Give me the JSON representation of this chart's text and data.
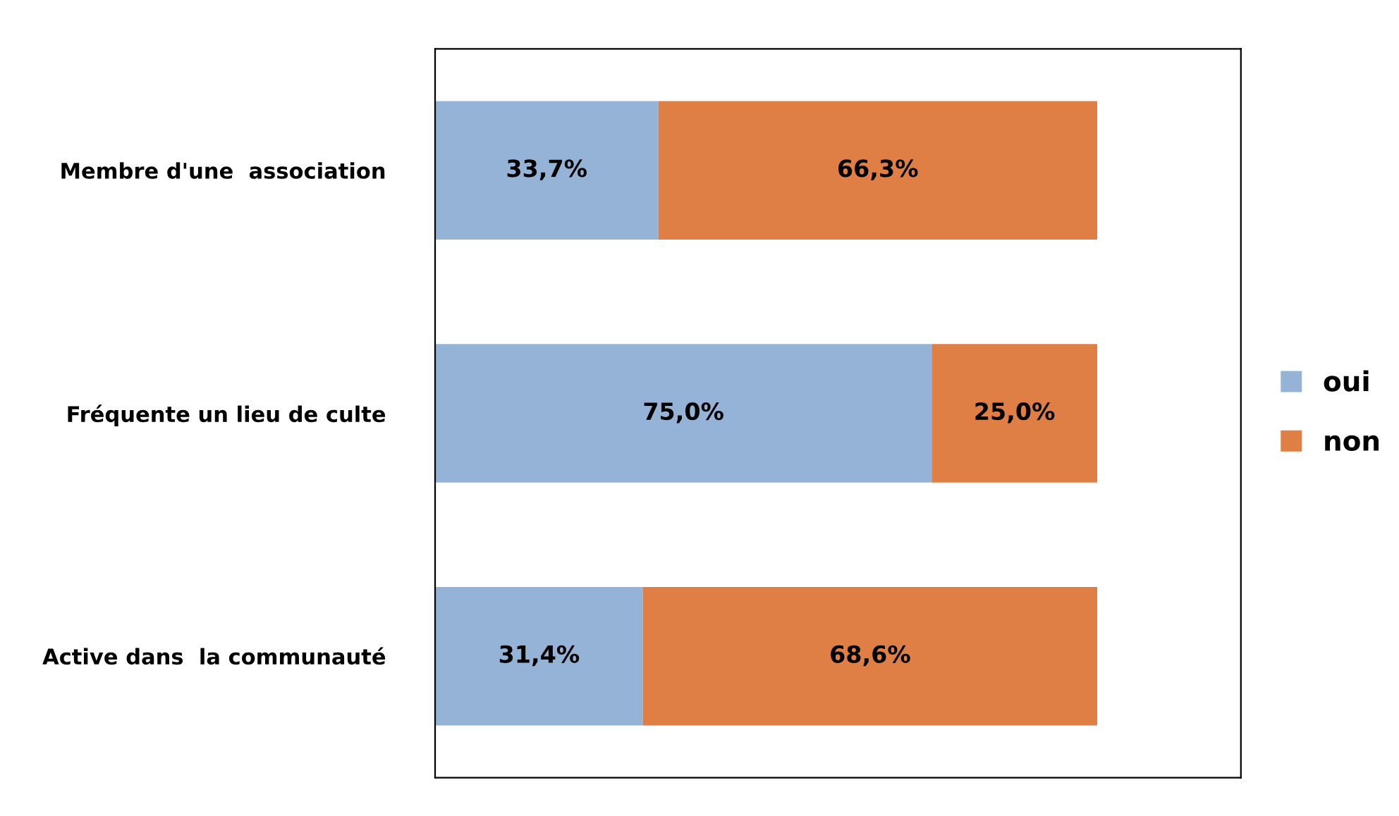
{
  "chart_data": {
    "type": "bar",
    "orientation": "horizontal",
    "stacked": true,
    "categories": [
      "Membre d'une  association",
      "Fréquente un lieu de culte",
      "Active dans  la communauté"
    ],
    "series": [
      {
        "name": "oui",
        "color": "#95b3d7",
        "values": [
          33.7,
          75.0,
          31.4
        ],
        "value_labels": [
          "33,7%",
          "75,0%",
          "31,4%"
        ]
      },
      {
        "name": "non",
        "color": "#e07f45",
        "values": [
          66.3,
          25.0,
          68.6
        ],
        "value_labels": [
          "66,3%",
          "25,0%",
          "68,6%"
        ]
      }
    ],
    "legend": "right",
    "grid": false
  }
}
